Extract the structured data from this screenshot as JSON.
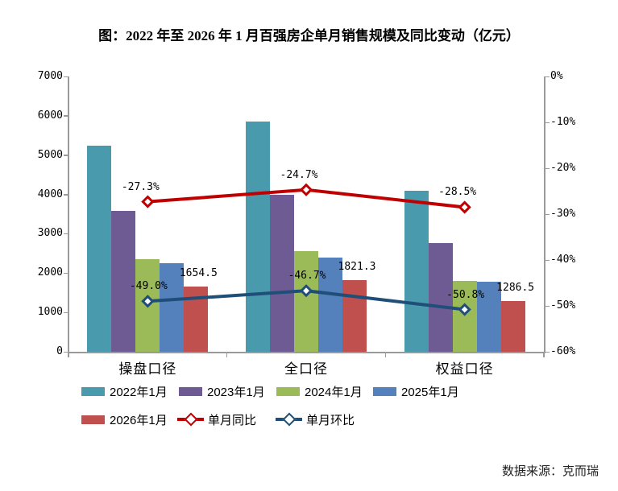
{
  "chart_data": {
    "type": "bar",
    "combo": "grouped bars with two overlay lines (secondary % axis)",
    "title": "图：2022 年至 2026 年 1 月百强房企单月销售规模及同比变动（亿元）",
    "categories": [
      "操盘口径",
      "全口径",
      "权益口径"
    ],
    "bar_series": [
      {
        "name": "2022年1月",
        "color": "#4A9AAE",
        "values": [
          5250,
          5850,
          4090
        ]
      },
      {
        "name": "2023年1月",
        "color": "#6F5B93",
        "values": [
          3580,
          3990,
          2770
        ]
      },
      {
        "name": "2024年1月",
        "color": "#9BBB59",
        "values": [
          2350,
          2550,
          1810
        ]
      },
      {
        "name": "2025年1月",
        "color": "#5480BC",
        "values": [
          2260,
          2400,
          1790
        ]
      },
      {
        "name": "2026年1月",
        "color": "#C0504D",
        "values": [
          1654.5,
          1821.3,
          1286.5
        ],
        "data_labels": [
          "1654.5",
          "1821.3",
          "1286.5"
        ]
      }
    ],
    "line_series": [
      {
        "name": "单月同比",
        "color": "#C00000",
        "values": [
          -27.3,
          -24.7,
          -28.5
        ],
        "labels": [
          "-27.3%",
          "-24.7%",
          "-28.5%"
        ]
      },
      {
        "name": "单月环比",
        "color": "#1F4E79",
        "values": [
          -49.0,
          -46.7,
          -50.8
        ],
        "labels": [
          "-49.0%",
          "-46.7%",
          "-50.8%"
        ]
      }
    ],
    "left_axis": {
      "min": 0,
      "max": 7000,
      "step": 1000,
      "ticks": [
        "7000",
        "6000",
        "5000",
        "4000",
        "3000",
        "2000",
        "1000",
        "0"
      ]
    },
    "right_axis": {
      "min": -60,
      "max": 0,
      "step": 10,
      "ticks": [
        "0%",
        "-10%",
        "-20%",
        "-30%",
        "-40%",
        "-50%",
        "-60%"
      ]
    },
    "grid": "off",
    "legend_position": "bottom, two rows",
    "source": "数据来源：克而瑞"
  }
}
